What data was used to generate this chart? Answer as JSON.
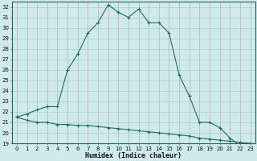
{
  "xlabel": "Humidex (Indice chaleur)",
  "x_values": [
    0,
    1,
    2,
    3,
    4,
    5,
    6,
    7,
    8,
    9,
    10,
    11,
    12,
    13,
    14,
    15,
    16,
    17,
    18,
    19,
    20,
    21,
    22,
    23
  ],
  "upper_y": [
    21.5,
    21.8,
    22.2,
    22.5,
    22.5,
    26.0,
    27.5,
    29.5,
    30.5,
    32.2,
    31.5,
    31.0,
    31.8,
    30.5,
    30.5,
    29.5,
    25.5,
    23.5,
    21.0,
    21.0,
    20.5,
    19.5,
    18.8,
    18.8
  ],
  "lower_y": [
    21.5,
    21.2,
    21.0,
    21.0,
    20.8,
    20.8,
    20.7,
    20.7,
    20.6,
    20.5,
    20.4,
    20.3,
    20.2,
    20.1,
    20.0,
    19.9,
    19.8,
    19.7,
    19.5,
    19.4,
    19.3,
    19.2,
    19.1,
    19.0
  ],
  "line_color": "#1a6e62",
  "bg_color": "#ceeaea",
  "vert_grid_color": "#c4a8a8",
  "horiz_grid_color": "#aacece",
  "ylim_min": 19,
  "ylim_max": 32.5,
  "yticks": [
    19,
    20,
    21,
    22,
    23,
    24,
    25,
    26,
    27,
    28,
    29,
    30,
    31,
    32
  ],
  "xticks": [
    0,
    1,
    2,
    3,
    4,
    5,
    6,
    7,
    8,
    9,
    10,
    11,
    12,
    13,
    14,
    15,
    16,
    17,
    18,
    19,
    20,
    21,
    22,
    23
  ],
  "marker": "+",
  "markersize": 3,
  "linewidth": 0.8,
  "tick_fontsize": 5,
  "xlabel_fontsize": 6
}
